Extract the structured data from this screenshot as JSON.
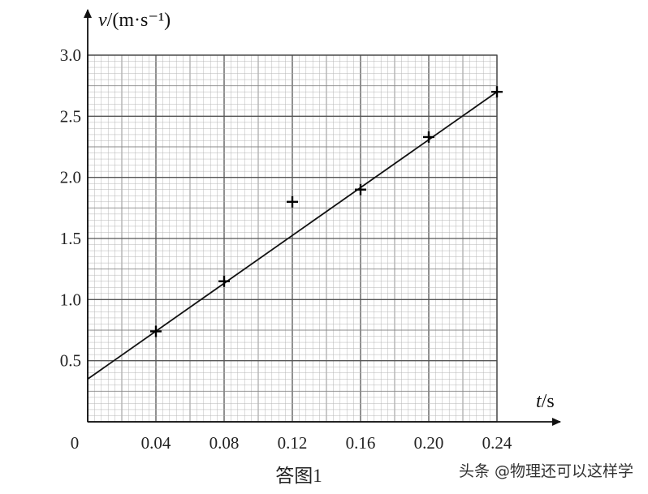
{
  "chart_data": {
    "type": "scatter",
    "x_label_var": "t",
    "x_label_unit": "/s",
    "y_label_var": "v",
    "y_label_unit": "/(m·s⁻¹)",
    "origin_label": "0",
    "x_ticks": [
      "0.04",
      "0.08",
      "0.12",
      "0.16",
      "0.20",
      "0.24"
    ],
    "y_ticks": [
      "0.5",
      "1.0",
      "1.5",
      "2.0",
      "2.5",
      "3.0"
    ],
    "xlim": [
      0,
      0.24
    ],
    "ylim": [
      0,
      3.0
    ],
    "grid": true,
    "points": [
      {
        "x": 0.04,
        "y": 0.74
      },
      {
        "x": 0.08,
        "y": 1.15
      },
      {
        "x": 0.12,
        "y": 1.8
      },
      {
        "x": 0.16,
        "y": 1.9
      },
      {
        "x": 0.2,
        "y": 2.33
      },
      {
        "x": 0.24,
        "y": 2.7
      }
    ],
    "fit_line": {
      "intercept": 0.35,
      "slope": 9.79
    }
  },
  "caption": "答图1",
  "watermark": "头条 @物理还可以这样学"
}
